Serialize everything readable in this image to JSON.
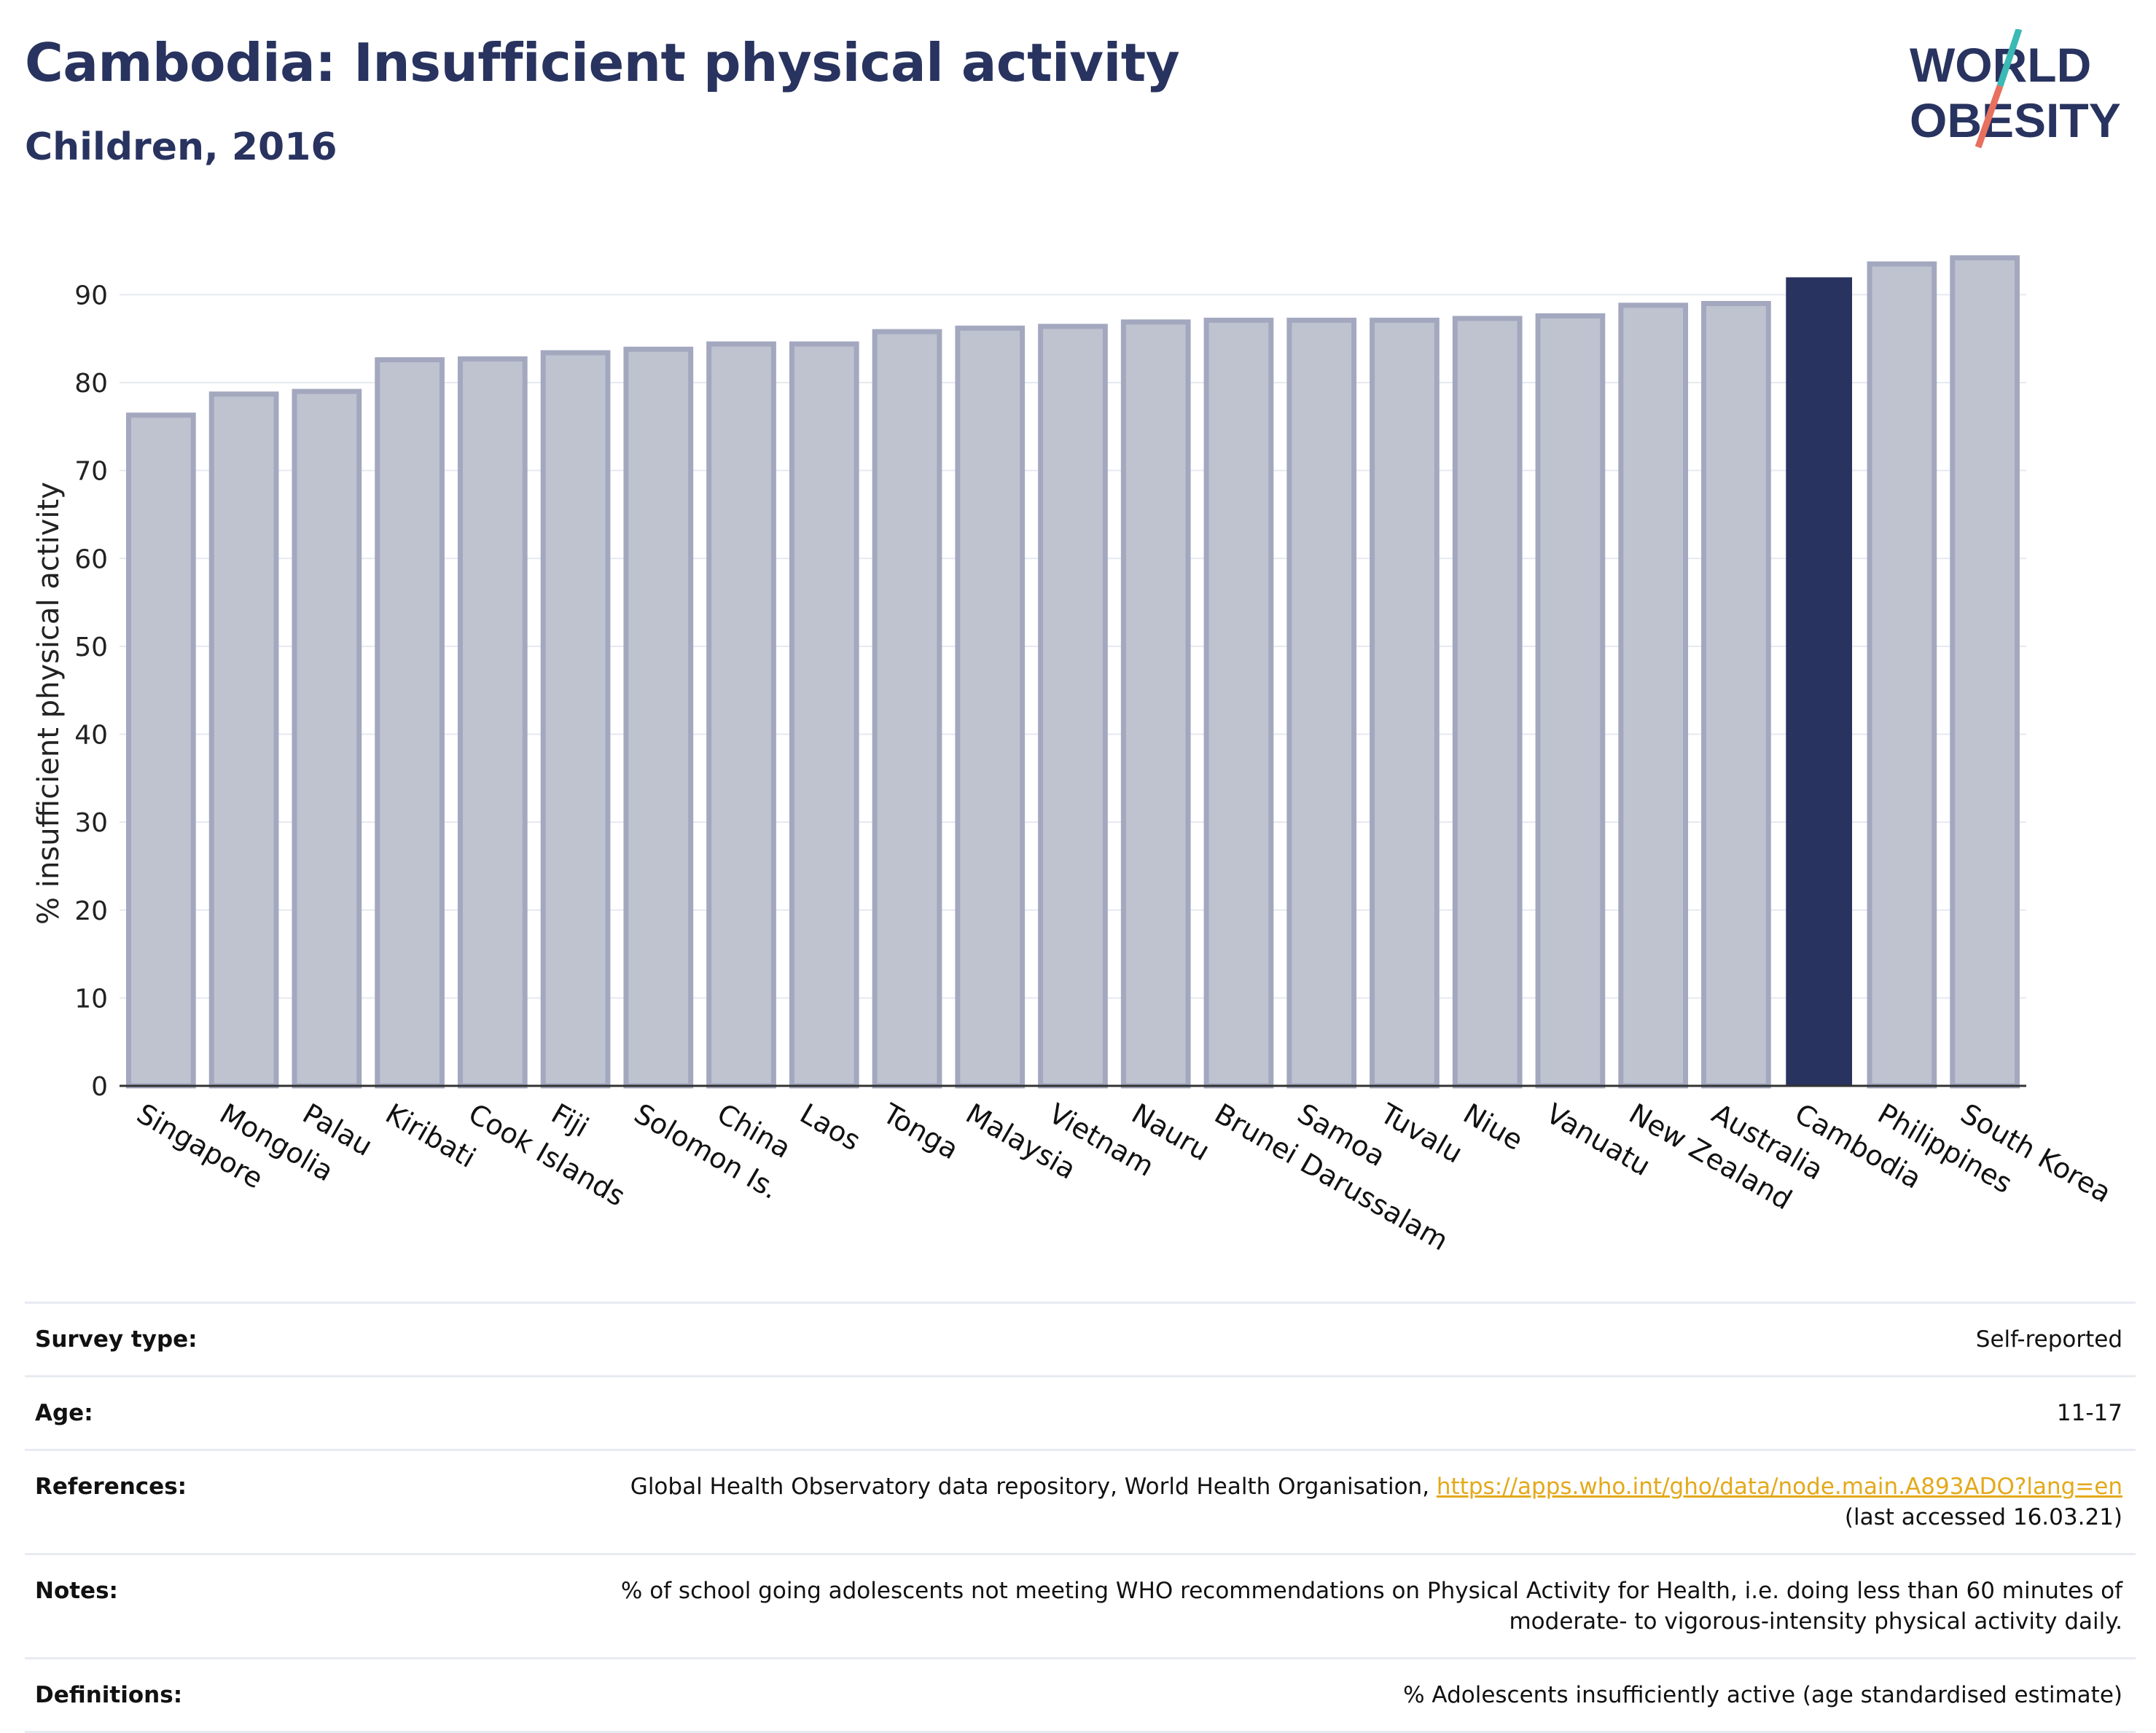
{
  "header": {
    "title": "Cambodia: Insufficient physical activity",
    "subtitle": "Children, 2016"
  },
  "logo": {
    "line1": "WORLD",
    "line2": "OBESITY"
  },
  "colors": {
    "highlight": "#28335f",
    "bar_fill": "#bfc3d0",
    "bar_stroke": "#a3a8bf",
    "grid": "#e6e9f0",
    "logo_text": "#28335f",
    "logo_teal": "#3bb9b4",
    "logo_coral": "#e8705e",
    "link": "#e3a91b"
  },
  "chart_data": {
    "type": "bar",
    "title": "",
    "xlabel": "",
    "ylabel": "% insufficient physical activity",
    "ylim": [
      0,
      97
    ],
    "yticks": [
      0,
      10,
      20,
      30,
      40,
      50,
      60,
      70,
      80,
      90
    ],
    "grid": true,
    "highlight": "Cambodia",
    "categories": [
      "Singapore",
      "Mongolia",
      "Palau",
      "Kiribati",
      "Cook Islands",
      "Fiji",
      "Solomon Is.",
      "China",
      "Laos",
      "Tonga",
      "Malaysia",
      "Vietnam",
      "Nauru",
      "Brunei Darussalam",
      "Samoa",
      "Tuvalu",
      "Niue",
      "Vanuatu",
      "New Zealand",
      "Australia",
      "Cambodia",
      "Philippines",
      "South Korea"
    ],
    "values": [
      76.3,
      78.7,
      79.0,
      82.6,
      82.7,
      83.4,
      83.8,
      84.4,
      84.4,
      85.8,
      86.2,
      86.4,
      86.9,
      87.1,
      87.1,
      87.1,
      87.3,
      87.6,
      88.8,
      89.0,
      91.9,
      93.5,
      94.2
    ]
  },
  "info": {
    "survey_label": "Survey type:",
    "survey_value": "Self-reported",
    "age_label": "Age:",
    "age_value": "11-17",
    "refs_label": "References:",
    "refs_text": "Global Health Observatory data repository, World Health Organisation, ",
    "refs_link": "https://apps.who.int/gho/data/node.main.A893ADO?lang=en",
    "refs_accessed": "(last accessed 16.03.21)",
    "notes_label": "Notes:",
    "notes_line1": "% of school going adolescents not meeting WHO recommendations on Physical Activity for Health, i.e. doing less than 60 minutes of",
    "notes_line2": "moderate- to vigorous-intensity physical activity daily.",
    "defs_label": "Definitions:",
    "defs_value": "% Adolescents insufficiently active (age standardised estimate)"
  }
}
